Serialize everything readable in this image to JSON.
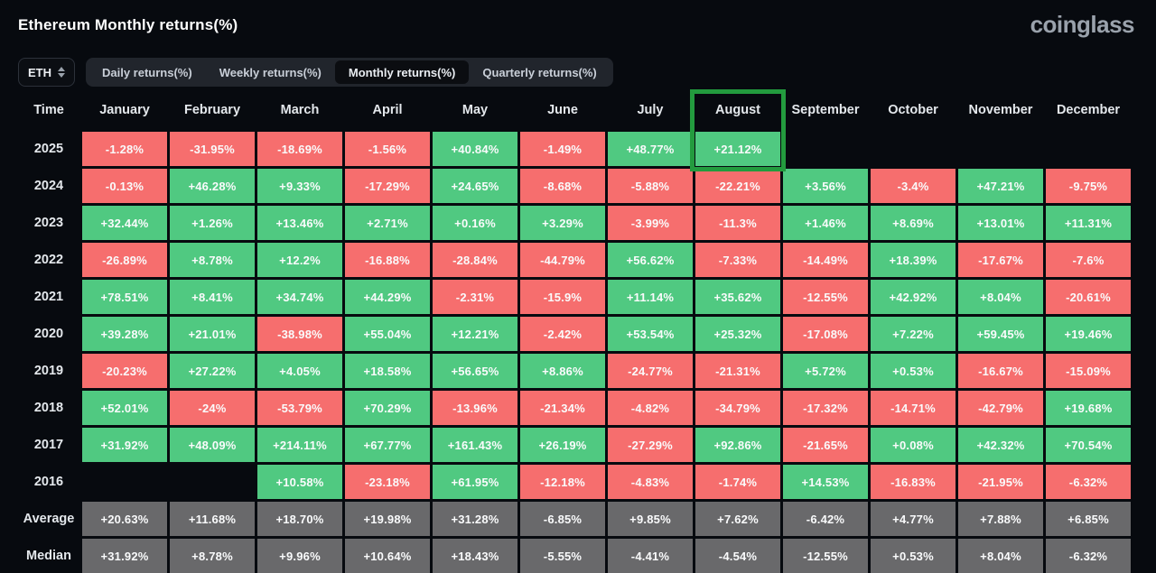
{
  "header": {
    "title": "Ethereum Monthly returns(%)",
    "logo_text": "coinglass"
  },
  "controls": {
    "symbol_selector": {
      "value": "ETH",
      "icon": "up-down-chevron-icon"
    },
    "tabs": [
      {
        "label": "Daily returns(%)",
        "active": false
      },
      {
        "label": "Weekly returns(%)",
        "active": false
      },
      {
        "label": "Monthly returns(%)",
        "active": true
      },
      {
        "label": "Quarterly returns(%)",
        "active": false
      }
    ]
  },
  "chart_data": {
    "type": "heatmap",
    "title": "Ethereum Monthly returns(%)",
    "corner_label": "Time",
    "columns": [
      "January",
      "February",
      "March",
      "April",
      "May",
      "June",
      "July",
      "August",
      "September",
      "October",
      "November",
      "December"
    ],
    "rows": [
      {
        "label": "2025",
        "kind": "year",
        "values": [
          "-1.28%",
          "-31.95%",
          "-18.69%",
          "-1.56%",
          "+40.84%",
          "-1.49%",
          "+48.77%",
          "+21.12%",
          "",
          "",
          "",
          ""
        ]
      },
      {
        "label": "2024",
        "kind": "year",
        "values": [
          "-0.13%",
          "+46.28%",
          "+9.33%",
          "-17.29%",
          "+24.65%",
          "-8.68%",
          "-5.88%",
          "-22.21%",
          "+3.56%",
          "-3.4%",
          "+47.21%",
          "-9.75%"
        ]
      },
      {
        "label": "2023",
        "kind": "year",
        "values": [
          "+32.44%",
          "+1.26%",
          "+13.46%",
          "+2.71%",
          "+0.16%",
          "+3.29%",
          "-3.99%",
          "-11.3%",
          "+1.46%",
          "+8.69%",
          "+13.01%",
          "+11.31%"
        ]
      },
      {
        "label": "2022",
        "kind": "year",
        "values": [
          "-26.89%",
          "+8.78%",
          "+12.2%",
          "-16.88%",
          "-28.84%",
          "-44.79%",
          "+56.62%",
          "-7.33%",
          "-14.49%",
          "+18.39%",
          "-17.67%",
          "-7.6%"
        ]
      },
      {
        "label": "2021",
        "kind": "year",
        "values": [
          "+78.51%",
          "+8.41%",
          "+34.74%",
          "+44.29%",
          "-2.31%",
          "-15.9%",
          "+11.14%",
          "+35.62%",
          "-12.55%",
          "+42.92%",
          "+8.04%",
          "-20.61%"
        ]
      },
      {
        "label": "2020",
        "kind": "year",
        "values": [
          "+39.28%",
          "+21.01%",
          "-38.98%",
          "+55.04%",
          "+12.21%",
          "-2.42%",
          "+53.54%",
          "+25.32%",
          "-17.08%",
          "+7.22%",
          "+59.45%",
          "+19.46%"
        ]
      },
      {
        "label": "2019",
        "kind": "year",
        "values": [
          "-20.23%",
          "+27.22%",
          "+4.05%",
          "+18.58%",
          "+56.65%",
          "+8.86%",
          "-24.77%",
          "-21.31%",
          "+5.72%",
          "+0.53%",
          "-16.67%",
          "-15.09%"
        ]
      },
      {
        "label": "2018",
        "kind": "year",
        "values": [
          "+52.01%",
          "-24%",
          "-53.79%",
          "+70.29%",
          "-13.96%",
          "-21.34%",
          "-4.82%",
          "-34.79%",
          "-17.32%",
          "-14.71%",
          "-42.79%",
          "+19.68%"
        ]
      },
      {
        "label": "2017",
        "kind": "year",
        "values": [
          "+31.92%",
          "+48.09%",
          "+214.11%",
          "+67.77%",
          "+161.43%",
          "+26.19%",
          "-27.29%",
          "+92.86%",
          "-21.65%",
          "+0.08%",
          "+42.32%",
          "+70.54%"
        ]
      },
      {
        "label": "2016",
        "kind": "year",
        "values": [
          "",
          "",
          "+10.58%",
          "-23.18%",
          "+61.95%",
          "-12.18%",
          "-4.83%",
          "-1.74%",
          "+14.53%",
          "-16.83%",
          "-21.95%",
          "-6.32%"
        ]
      },
      {
        "label": "Average",
        "kind": "summary",
        "values": [
          "+20.63%",
          "+11.68%",
          "+18.70%",
          "+19.98%",
          "+31.28%",
          "-6.85%",
          "+9.85%",
          "+7.62%",
          "-6.42%",
          "+4.77%",
          "+7.88%",
          "+6.85%"
        ]
      },
      {
        "label": "Median",
        "kind": "summary",
        "values": [
          "+31.92%",
          "+8.78%",
          "+9.96%",
          "+10.64%",
          "+18.43%",
          "-5.55%",
          "-4.41%",
          "-4.54%",
          "-12.55%",
          "+0.53%",
          "+8.04%",
          "-6.32%"
        ]
      }
    ],
    "highlight": {
      "column": "August",
      "span_rows": [
        "header",
        "2025"
      ],
      "border_color": "#239b3e"
    },
    "colors": {
      "positive": "#50c981",
      "negative": "#f66e6e",
      "summary": "#69696b",
      "highlight_border": "#239b3e",
      "background": "#070a0f",
      "cell_text": "#fafbfc"
    }
  }
}
